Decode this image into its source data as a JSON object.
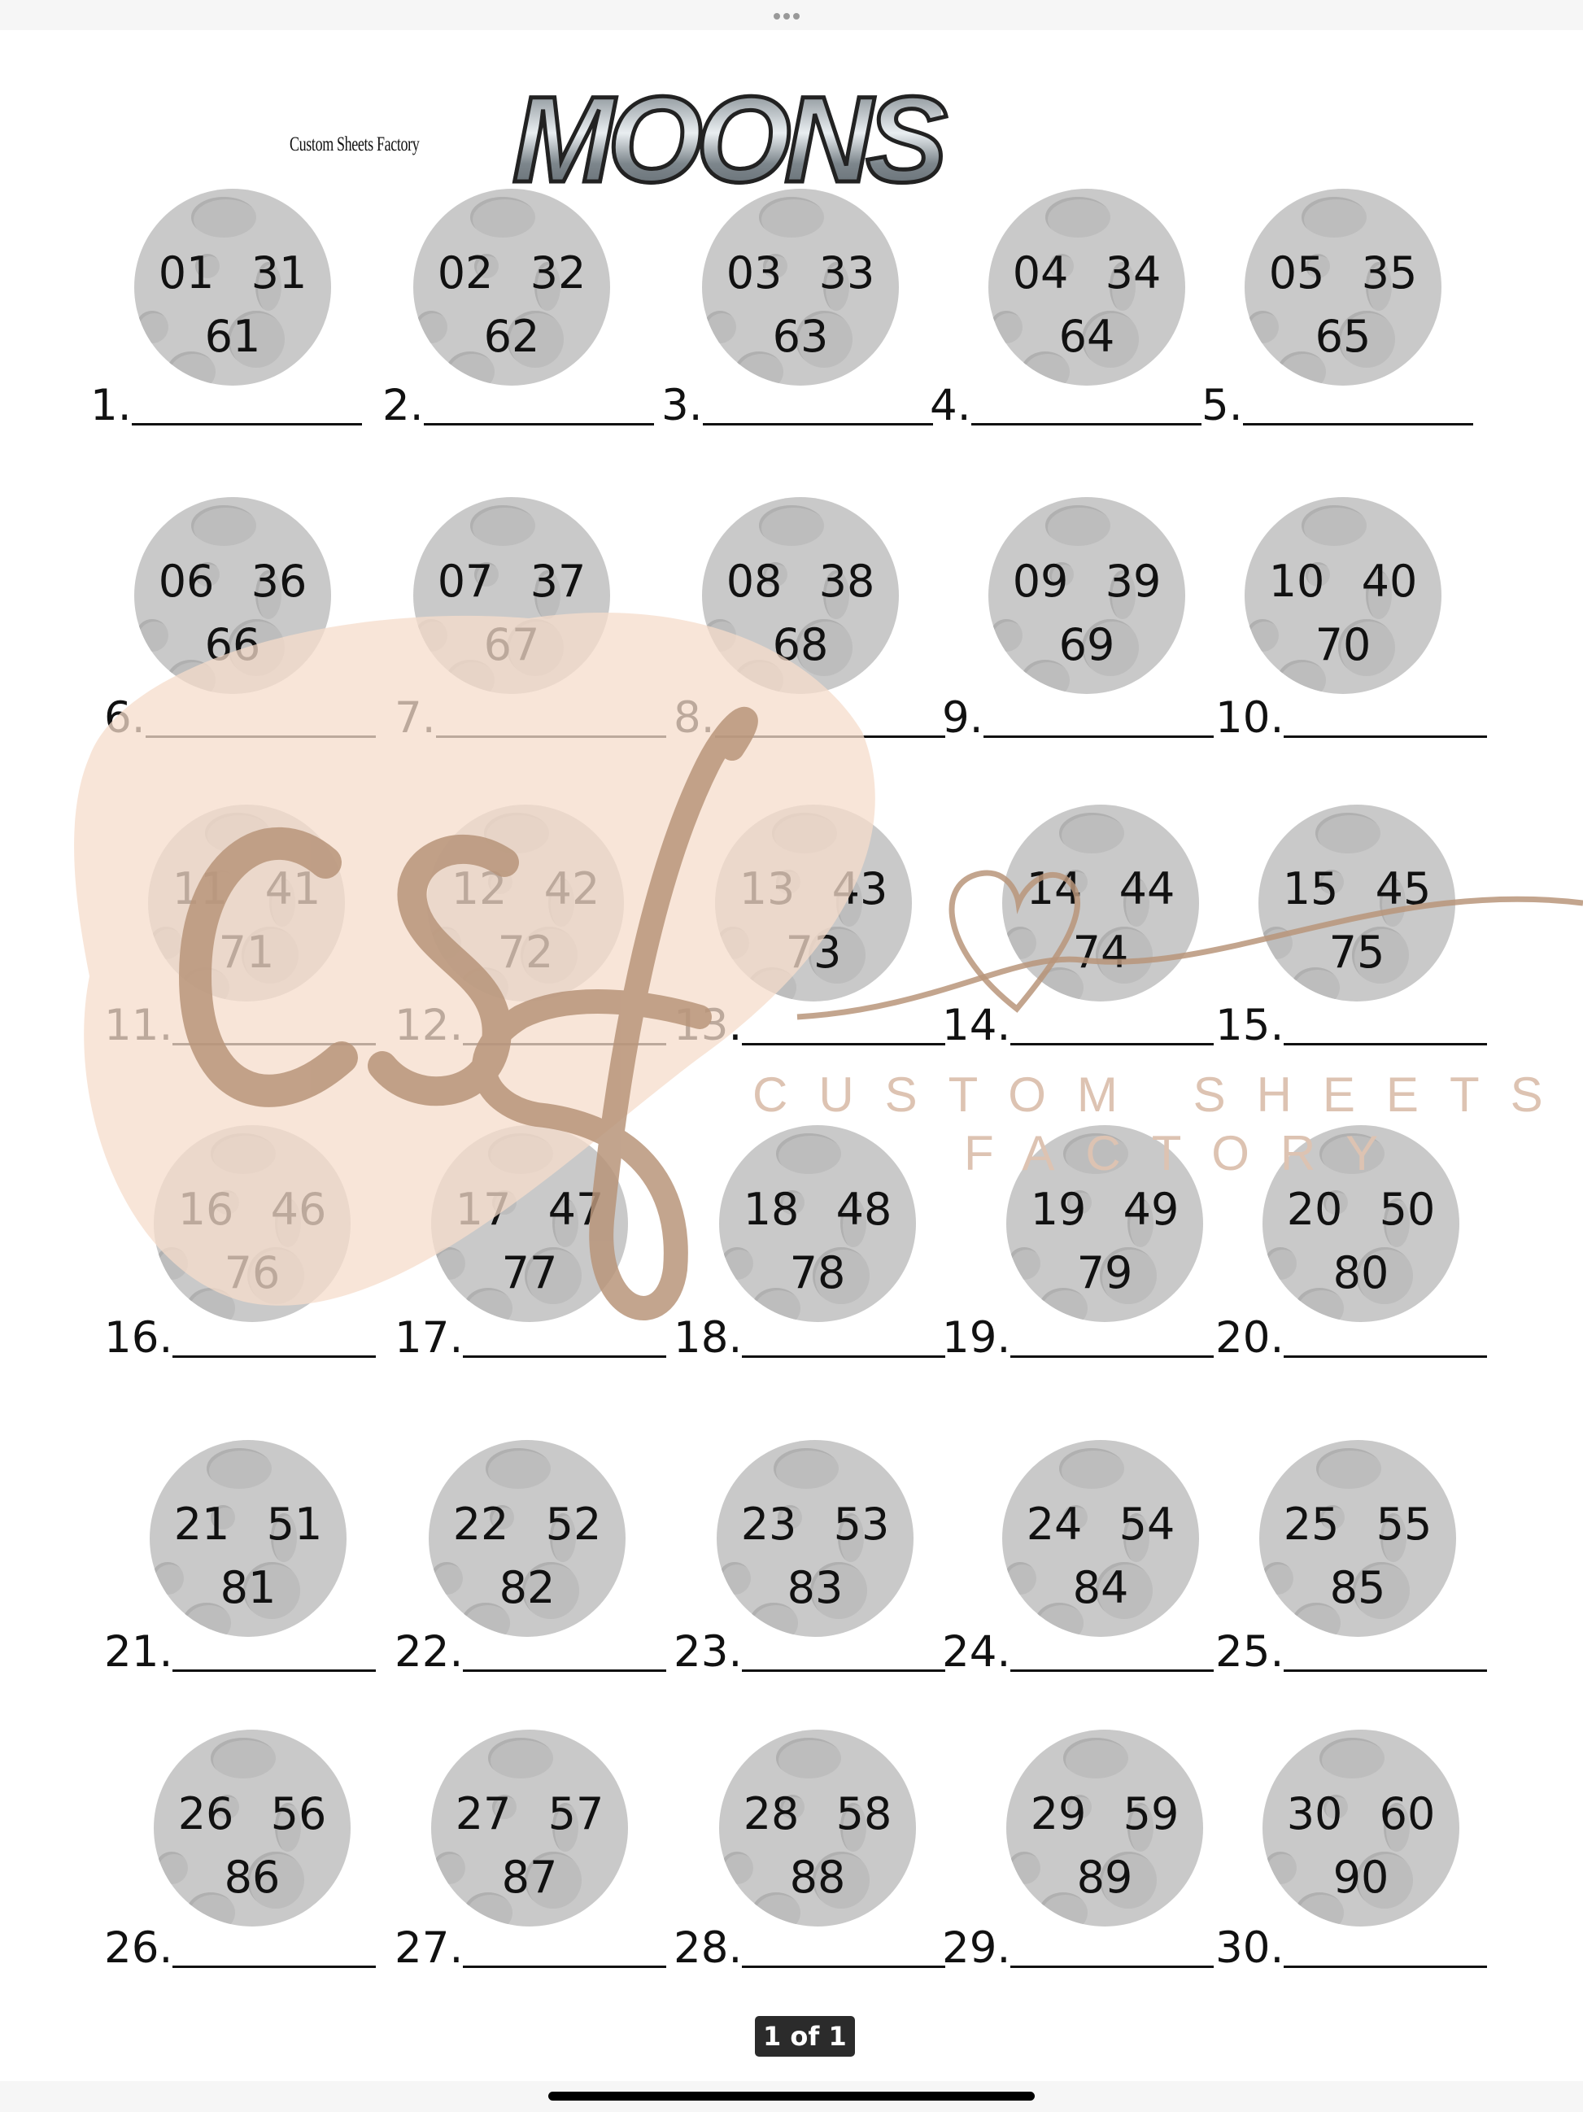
{
  "document": {
    "brand": "Custom Sheets Factory",
    "title": "MOONS",
    "watermark": {
      "logo": "csf",
      "line1": "CUSTOM SHEETS",
      "line2": "FACTORY"
    },
    "slots": [
      {
        "top": "01 31",
        "bottom": "61",
        "label": "1."
      },
      {
        "top": "02 32",
        "bottom": "62",
        "label": "2."
      },
      {
        "top": "03 33",
        "bottom": "63",
        "label": "3."
      },
      {
        "top": "04 34",
        "bottom": "64",
        "label": "4."
      },
      {
        "top": "05 35",
        "bottom": "65",
        "label": "5."
      },
      {
        "top": "06 36",
        "bottom": "66",
        "label": "6."
      },
      {
        "top": "07 37",
        "bottom": "67",
        "label": "7."
      },
      {
        "top": "08 38",
        "bottom": "68",
        "label": "8."
      },
      {
        "top": "09 39",
        "bottom": "69",
        "label": "9."
      },
      {
        "top": "10 40",
        "bottom": "70",
        "label": "10."
      },
      {
        "top": "11 41",
        "bottom": "71",
        "label": "11."
      },
      {
        "top": "12 42",
        "bottom": "72",
        "label": "12."
      },
      {
        "top": "13 43",
        "bottom": "73",
        "label": "13."
      },
      {
        "top": "14 44",
        "bottom": "74",
        "label": "14."
      },
      {
        "top": "15 45",
        "bottom": "75",
        "label": "15."
      },
      {
        "top": "16 46",
        "bottom": "76",
        "label": "16."
      },
      {
        "top": "17 47",
        "bottom": "77",
        "label": "17."
      },
      {
        "top": "18 48",
        "bottom": "78",
        "label": "18."
      },
      {
        "top": "19 49",
        "bottom": "79",
        "label": "19."
      },
      {
        "top": "20 50",
        "bottom": "80",
        "label": "20."
      },
      {
        "top": "21 51",
        "bottom": "81",
        "label": "21."
      },
      {
        "top": "22 52",
        "bottom": "82",
        "label": "22."
      },
      {
        "top": "23 53",
        "bottom": "83",
        "label": "23."
      },
      {
        "top": "24 54",
        "bottom": "84",
        "label": "24."
      },
      {
        "top": "25 55",
        "bottom": "85",
        "label": "25."
      },
      {
        "top": "26 56",
        "bottom": "86",
        "label": "26."
      },
      {
        "top": "27 57",
        "bottom": "87",
        "label": "27."
      },
      {
        "top": "28 58",
        "bottom": "88",
        "label": "28."
      },
      {
        "top": "29 59",
        "bottom": "89",
        "label": "29."
      },
      {
        "top": "30 60",
        "bottom": "90",
        "label": "30."
      }
    ]
  },
  "viewer": {
    "page_indicator": "1 of 1"
  },
  "colors": {
    "moon": "#c9c9c9",
    "watermark_brown": "#b8957a",
    "watermark_peach": "#f6dccb"
  }
}
